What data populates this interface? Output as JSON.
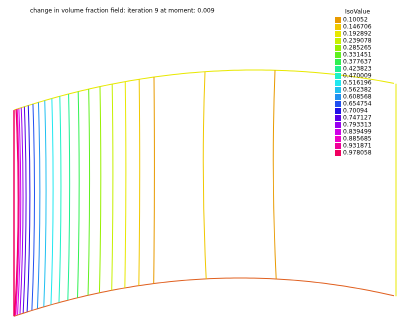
{
  "title": "change in volume fraction field: iteration 9 at moment: 0.009",
  "legend": {
    "title": "IsoValue",
    "entries": [
      {
        "label": "0.10052",
        "color": "#e89a00"
      },
      {
        "label": "0.146706",
        "color": "#f0c800"
      },
      {
        "label": "0.192892",
        "color": "#e8e800"
      },
      {
        "label": "0.239078",
        "color": "#c8f000"
      },
      {
        "label": "0.285265",
        "color": "#98f000"
      },
      {
        "label": "0.331451",
        "color": "#60f020"
      },
      {
        "label": "0.377637",
        "color": "#30f050"
      },
      {
        "label": "0.423823",
        "color": "#20f090"
      },
      {
        "label": "0.470009",
        "color": "#20f0c8"
      },
      {
        "label": "0.516196",
        "color": "#20e8f0"
      },
      {
        "label": "0.562382",
        "color": "#20c0f0"
      },
      {
        "label": "0.608568",
        "color": "#2090f0"
      },
      {
        "label": "0.654754",
        "color": "#2050f0"
      },
      {
        "label": "0.70094",
        "color": "#2010e8"
      },
      {
        "label": "0.747127",
        "color": "#5800e8"
      },
      {
        "label": "0.793313",
        "color": "#9800f0"
      },
      {
        "label": "0.839499",
        "color": "#d000e8"
      },
      {
        "label": "0.885685",
        "color": "#f000c8"
      },
      {
        "label": "0.931871",
        "color": "#f00098"
      },
      {
        "label": "0.978058",
        "color": "#f00060"
      }
    ]
  }
}
